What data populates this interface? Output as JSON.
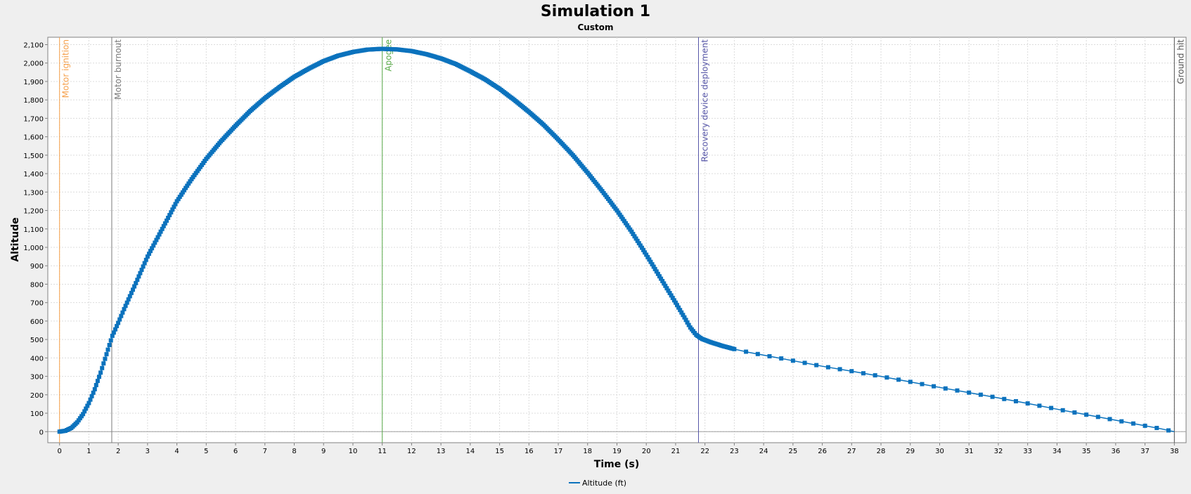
{
  "chart_data": {
    "type": "line",
    "title": "Simulation 1",
    "subtitle": "Custom",
    "xlabel": "Time (s)",
    "ylabel": "Altitude",
    "xlim": [
      -0.4,
      38.4
    ],
    "ylim": [
      -60,
      2140
    ],
    "x_ticks": [
      0,
      1,
      2,
      3,
      4,
      5,
      6,
      7,
      8,
      9,
      10,
      11,
      12,
      13,
      14,
      15,
      16,
      17,
      18,
      19,
      20,
      21,
      22,
      23,
      24,
      25,
      26,
      27,
      28,
      29,
      30,
      31,
      32,
      33,
      34,
      35,
      36,
      37,
      38
    ],
    "y_ticks": [
      0,
      100,
      200,
      300,
      400,
      500,
      600,
      700,
      800,
      900,
      1000,
      1100,
      1200,
      1300,
      1400,
      1500,
      1600,
      1700,
      1800,
      1900,
      2000,
      2100
    ],
    "y_tick_labels": [
      "0",
      "100",
      "200",
      "300",
      "400",
      "500",
      "600",
      "700",
      "800",
      "900",
      "1,000",
      "1,100",
      "1,200",
      "1,300",
      "1,400",
      "1,500",
      "1,600",
      "1,700",
      "1,800",
      "1,900",
      "2,000",
      "2,100"
    ],
    "grid": true,
    "legend": {
      "position": "bottom-center",
      "entries": [
        "Altitude (ft)"
      ]
    },
    "series": [
      {
        "name": "Altitude (ft)",
        "color": "#0b72bd",
        "points": [
          [
            0,
            0
          ],
          [
            0.2,
            5
          ],
          [
            0.4,
            20
          ],
          [
            0.6,
            50
          ],
          [
            0.8,
            95
          ],
          [
            1.0,
            155
          ],
          [
            1.2,
            230
          ],
          [
            1.4,
            320
          ],
          [
            1.6,
            420
          ],
          [
            1.8,
            520
          ],
          [
            2.0,
            590
          ],
          [
            2.2,
            665
          ],
          [
            2.5,
            770
          ],
          [
            3.0,
            950
          ],
          [
            3.5,
            1100
          ],
          [
            4.0,
            1250
          ],
          [
            4.5,
            1370
          ],
          [
            5.0,
            1480
          ],
          [
            5.5,
            1575
          ],
          [
            6.0,
            1660
          ],
          [
            6.5,
            1740
          ],
          [
            7.0,
            1810
          ],
          [
            7.5,
            1870
          ],
          [
            8.0,
            1925
          ],
          [
            8.5,
            1970
          ],
          [
            9.0,
            2010
          ],
          [
            9.5,
            2040
          ],
          [
            10.0,
            2060
          ],
          [
            10.5,
            2073
          ],
          [
            11.0,
            2077
          ],
          [
            11.5,
            2074
          ],
          [
            12.0,
            2065
          ],
          [
            12.5,
            2048
          ],
          [
            13.0,
            2025
          ],
          [
            13.5,
            1995
          ],
          [
            14.0,
            1955
          ],
          [
            14.5,
            1912
          ],
          [
            15.0,
            1860
          ],
          [
            15.5,
            1800
          ],
          [
            16.0,
            1735
          ],
          [
            16.5,
            1665
          ],
          [
            17.0,
            1585
          ],
          [
            17.5,
            1500
          ],
          [
            18.0,
            1405
          ],
          [
            18.5,
            1305
          ],
          [
            19.0,
            1200
          ],
          [
            19.5,
            1085
          ],
          [
            20.0,
            960
          ],
          [
            20.5,
            830
          ],
          [
            21.0,
            700
          ],
          [
            21.3,
            620
          ],
          [
            21.5,
            565
          ],
          [
            21.7,
            525
          ],
          [
            21.9,
            503
          ],
          [
            22.2,
            485
          ],
          [
            22.6,
            465
          ],
          [
            23.0,
            448
          ],
          [
            23.5,
            430
          ],
          [
            24.0,
            415
          ],
          [
            25.0,
            385
          ],
          [
            26.0,
            355
          ],
          [
            27.0,
            328
          ],
          [
            28.0,
            300
          ],
          [
            29.0,
            270
          ],
          [
            30.0,
            240
          ],
          [
            31.0,
            212
          ],
          [
            32.0,
            183
          ],
          [
            33.0,
            153
          ],
          [
            34.0,
            122
          ],
          [
            35.0,
            92
          ],
          [
            36.0,
            62
          ],
          [
            37.0,
            32
          ],
          [
            37.5,
            17
          ],
          [
            38.0,
            0
          ]
        ]
      }
    ],
    "events": [
      {
        "label": "Motor ignition",
        "x": 0.0,
        "color": "#f5a04b"
      },
      {
        "label": "Motor burnout",
        "x": 1.78,
        "color": "#7a7a7a"
      },
      {
        "label": "Apogee",
        "x": 11.0,
        "color": "#5aaa4a"
      },
      {
        "label": "Recovery device deployment",
        "x": 21.78,
        "color": "#5656a8"
      },
      {
        "label": "Ground hit",
        "x": 38.0,
        "color": "#505050"
      }
    ]
  }
}
